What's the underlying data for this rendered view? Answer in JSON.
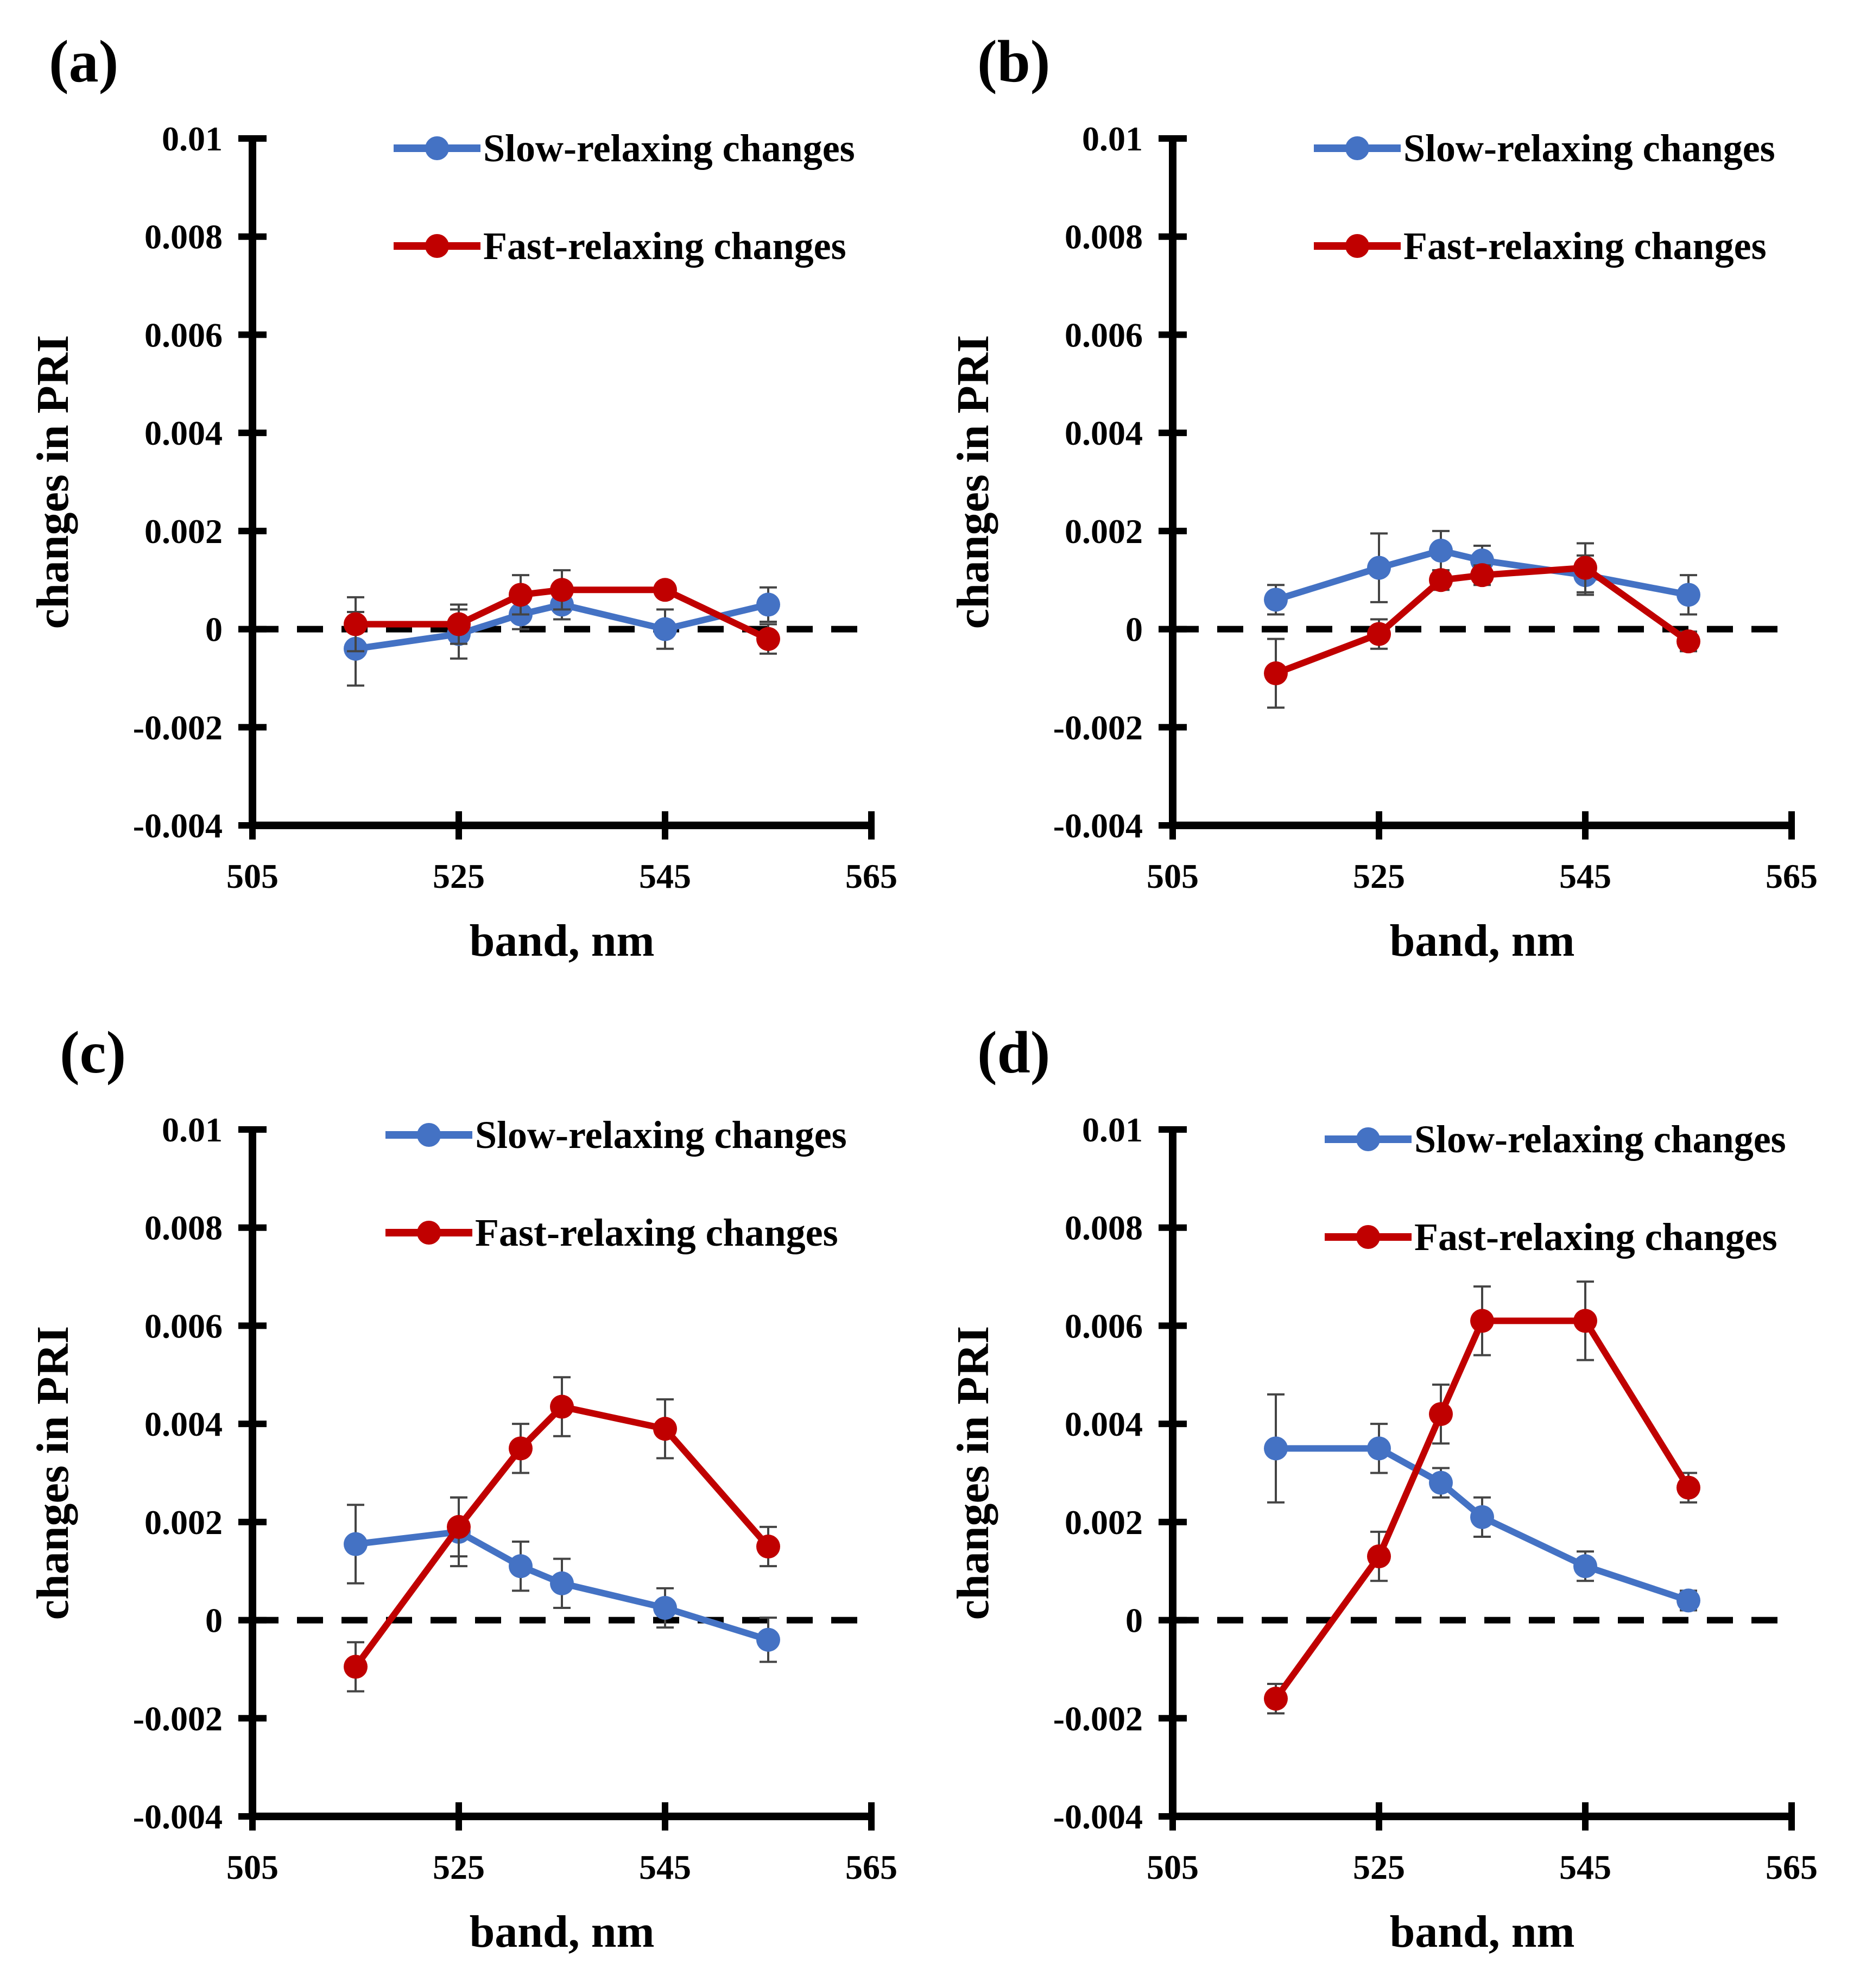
{
  "figure": {
    "colors": {
      "slow": "#4472C4",
      "fast": "#C00000",
      "axis": "#000000"
    },
    "common": {
      "xlabel": "band, nm",
      "ylabel": "changes in PRI",
      "xticks": [
        505,
        525,
        545,
        565
      ],
      "yticks": [
        0.01,
        0.008,
        0.006,
        0.004,
        0.002,
        0,
        -0.002,
        -0.004
      ],
      "ytick_labels": [
        "0.01",
        "0.008",
        "0.006",
        "0.004",
        "0.002",
        "0",
        "-0.002",
        "-0.004"
      ],
      "xtick_labels": [
        "505",
        "525",
        "545",
        "565"
      ],
      "legend": [
        "Slow-relaxing changes",
        "Fast-relaxing changes"
      ]
    }
  },
  "chart_data": [
    {
      "type": "line",
      "panel": "(a)",
      "title": "(a)",
      "xlabel": "band, nm",
      "ylabel": "changes in PRI",
      "xlim": [
        505,
        565
      ],
      "ylim": [
        -0.004,
        0.01
      ],
      "legend_position": "top-right",
      "x": [
        515,
        525,
        531,
        535,
        545,
        555
      ],
      "series": [
        {
          "name": "Slow-relaxing changes",
          "values": [
            -0.0004,
            -0.0001,
            0.0003,
            0.0005,
            0.0,
            0.0005
          ],
          "errors": [
            0.00075,
            0.0005,
            0.0003,
            0.0003,
            0.0004,
            0.00035
          ]
        },
        {
          "name": "Fast-relaxing changes",
          "values": [
            0.0001,
            0.0001,
            0.0007,
            0.0008,
            0.0008,
            -0.0002
          ],
          "errors": [
            0.00055,
            0.0004,
            0.0004,
            0.0004,
            0.0001,
            0.0003
          ]
        }
      ]
    },
    {
      "type": "line",
      "panel": "(b)",
      "title": "(b)",
      "xlabel": "band, nm",
      "ylabel": "changes in PRI",
      "xlim": [
        505,
        565
      ],
      "ylim": [
        -0.004,
        0.01
      ],
      "legend_position": "top-right",
      "x": [
        515,
        525,
        531,
        535,
        545,
        555
      ],
      "series": [
        {
          "name": "Slow-relaxing changes",
          "values": [
            0.0006,
            0.00125,
            0.0016,
            0.0014,
            0.0011,
            0.0007
          ],
          "errors": [
            0.0003,
            0.0007,
            0.0004,
            0.0003,
            0.0004,
            0.0004
          ]
        },
        {
          "name": "Fast-relaxing changes",
          "values": [
            -0.0009,
            -0.0001,
            0.001,
            0.0011,
            0.00125,
            -0.00025
          ],
          "errors": [
            0.0007,
            0.0003,
            0.0002,
            0.0002,
            0.0005,
            0.0002
          ]
        }
      ]
    },
    {
      "type": "line",
      "panel": "(c)",
      "title": "(c)",
      "xlabel": "band, nm",
      "ylabel": "changes in PRI",
      "xlim": [
        505,
        565
      ],
      "ylim": [
        -0.004,
        0.01
      ],
      "legend_position": "top-right",
      "x": [
        515,
        525,
        531,
        535,
        545,
        555
      ],
      "series": [
        {
          "name": "Slow-relaxing changes",
          "values": [
            0.00155,
            0.0018,
            0.0011,
            0.00075,
            0.00025,
            -0.0004
          ],
          "errors": [
            0.0008,
            0.0007,
            0.0005,
            0.0005,
            0.0004,
            0.00045
          ]
        },
        {
          "name": "Fast-relaxing changes",
          "values": [
            -0.00095,
            0.0019,
            0.0035,
            0.00435,
            0.0039,
            0.0015
          ],
          "errors": [
            0.0005,
            0.0006,
            0.0005,
            0.0006,
            0.0006,
            0.0004
          ]
        }
      ]
    },
    {
      "type": "line",
      "panel": "(d)",
      "title": "(d)",
      "xlabel": "band, nm",
      "ylabel": "changes in PRI",
      "xlim": [
        505,
        565
      ],
      "ylim": [
        -0.004,
        0.01
      ],
      "legend_position": "top-right",
      "x": [
        515,
        525,
        531,
        535,
        545,
        555
      ],
      "series": [
        {
          "name": "Slow-relaxing changes",
          "values": [
            0.0035,
            0.0035,
            0.0028,
            0.0021,
            0.0011,
            0.0004
          ],
          "errors": [
            0.0011,
            0.0005,
            0.0003,
            0.0004,
            0.0003,
            0.0002
          ]
        },
        {
          "name": "Fast-relaxing changes",
          "values": [
            -0.0016,
            0.0013,
            0.0042,
            0.0061,
            0.0061,
            0.0027
          ],
          "errors": [
            0.0003,
            0.0005,
            0.0006,
            0.0007,
            0.0008,
            0.0003
          ]
        }
      ]
    }
  ]
}
